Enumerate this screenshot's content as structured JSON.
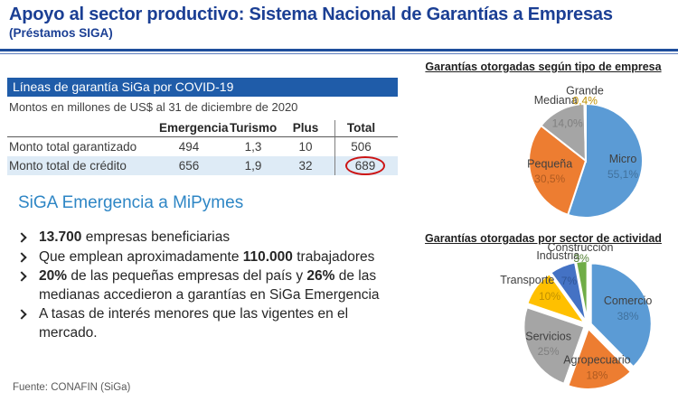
{
  "header": {
    "title": "Apoyo al sector productivo: Sistema Nacional de Garantías a Empresas",
    "subtitle": "(Préstamos SIGA)"
  },
  "table": {
    "header_bar": "Líneas de garantía SiGa por COVID-19",
    "caption": "Montos en millones de US$ al 31 de diciembre de 2020",
    "columns": [
      "",
      "Emergencia",
      "Turismo",
      "Plus",
      "Total"
    ],
    "rows": [
      {
        "label": "Monto total garantizado",
        "values": [
          "494",
          "1,3",
          "10",
          "506"
        ],
        "highlighted": false,
        "circled_total": false
      },
      {
        "label": "Monto total de crédito",
        "values": [
          "656",
          "1,9",
          "32",
          "689"
        ],
        "highlighted": true,
        "circled_total": true
      }
    ]
  },
  "section": {
    "heading": "SiGA Emergencia a MiPymes",
    "bullets": [
      [
        {
          "t": "13.700",
          "b": true
        },
        {
          "t": " empresas beneficiarias",
          "b": false
        }
      ],
      [
        {
          "t": "Que emplean aproximadamente ",
          "b": false
        },
        {
          "t": "110.000",
          "b": true
        },
        {
          "t": " trabajadores",
          "b": false
        }
      ],
      [
        {
          "t": "20%",
          "b": true
        },
        {
          "t": " de las pequeñas empresas del país y ",
          "b": false
        },
        {
          "t": "26%",
          "b": true
        },
        {
          "t": " de las medianas accedieron a garantías en SiGa Emergencia",
          "b": false
        }
      ],
      [
        {
          "t": "A tasas de interés menores que las vigentes en el mercado.",
          "b": false
        }
      ]
    ]
  },
  "footer": {
    "source": "Fuente: CONAFIN (SiGa)"
  },
  "chart_data": [
    {
      "type": "pie",
      "title": "Garantías otorgadas según tipo de empresa",
      "labels": [
        "Micro",
        "Pequeña",
        "Mediana",
        "Grande"
      ],
      "values": [
        55.1,
        30.5,
        14.0,
        0.4
      ],
      "value_labels": [
        "55,1%",
        "30,5%",
        "14,0%",
        "0,4%"
      ],
      "colors": [
        "#5B9BD5",
        "#ED7D31",
        "#A5A5A5",
        "#FFC000"
      ],
      "value_label_colors": [
        "#41719C",
        "#AE5A21",
        "#7F7F7F",
        "#BF9000"
      ],
      "label_color": "#404040",
      "start_angle": 0,
      "clockwise": true,
      "exploded": false,
      "legend": "none"
    },
    {
      "type": "pie",
      "title": "Garantías otorgadas por sector de actividad",
      "labels": [
        "Comercio",
        "Agropecuario",
        "Servicios",
        "Transporte",
        "Industria",
        "Construcción"
      ],
      "values": [
        38,
        18,
        25,
        10,
        7,
        3
      ],
      "value_labels": [
        "38%",
        "18%",
        "25%",
        "10%",
        "7%",
        "3%"
      ],
      "colors": [
        "#5B9BD5",
        "#ED7D31",
        "#A5A5A5",
        "#FFC000",
        "#4472C4",
        "#70AD47"
      ],
      "value_label_colors": [
        "#41719C",
        "#AE5A21",
        "#7F7F7F",
        "#BF9000",
        "#2F5597",
        "#548235"
      ],
      "label_color": "#404040",
      "start_angle": 0,
      "clockwise": true,
      "exploded": true,
      "legend": "none"
    }
  ],
  "colors": {
    "title_blue": "#1B3F94",
    "table_bar_blue": "#1F5CA9",
    "row_highlight": "#DEEBF6",
    "section_heading_blue": "#2E86C5",
    "circle_red": "#CC1414"
  }
}
